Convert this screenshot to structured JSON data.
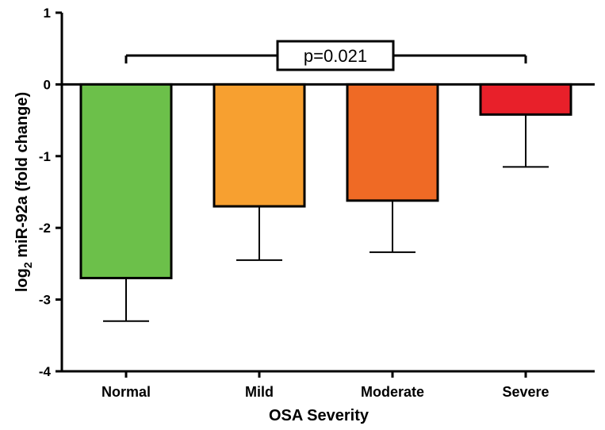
{
  "chart_data": {
    "type": "bar",
    "title": "",
    "xlabel": "OSA Severity",
    "ylabel_main": "log",
    "ylabel_sub": "2",
    "ylabel_rest": " miR-92a (fold change)",
    "ylim": [
      -4,
      1
    ],
    "yticks": [
      1,
      0,
      -1,
      -2,
      -3,
      -4
    ],
    "ytick_labels": [
      "1",
      "0",
      "-1",
      "-2",
      "-3",
      "-4"
    ],
    "categories": [
      "Normal",
      "Mild",
      "Moderate",
      "Severe"
    ],
    "values": [
      -2.7,
      -1.7,
      -1.62,
      -0.42
    ],
    "error": [
      0.6,
      0.75,
      0.72,
      0.73
    ],
    "colors": [
      "#6cc04a",
      "#f7a030",
      "#ef6a25",
      "#e8202a"
    ],
    "annotation": {
      "text": "p=0.021",
      "from": "Normal",
      "to": "Severe"
    },
    "grid": false,
    "legend": "none"
  }
}
